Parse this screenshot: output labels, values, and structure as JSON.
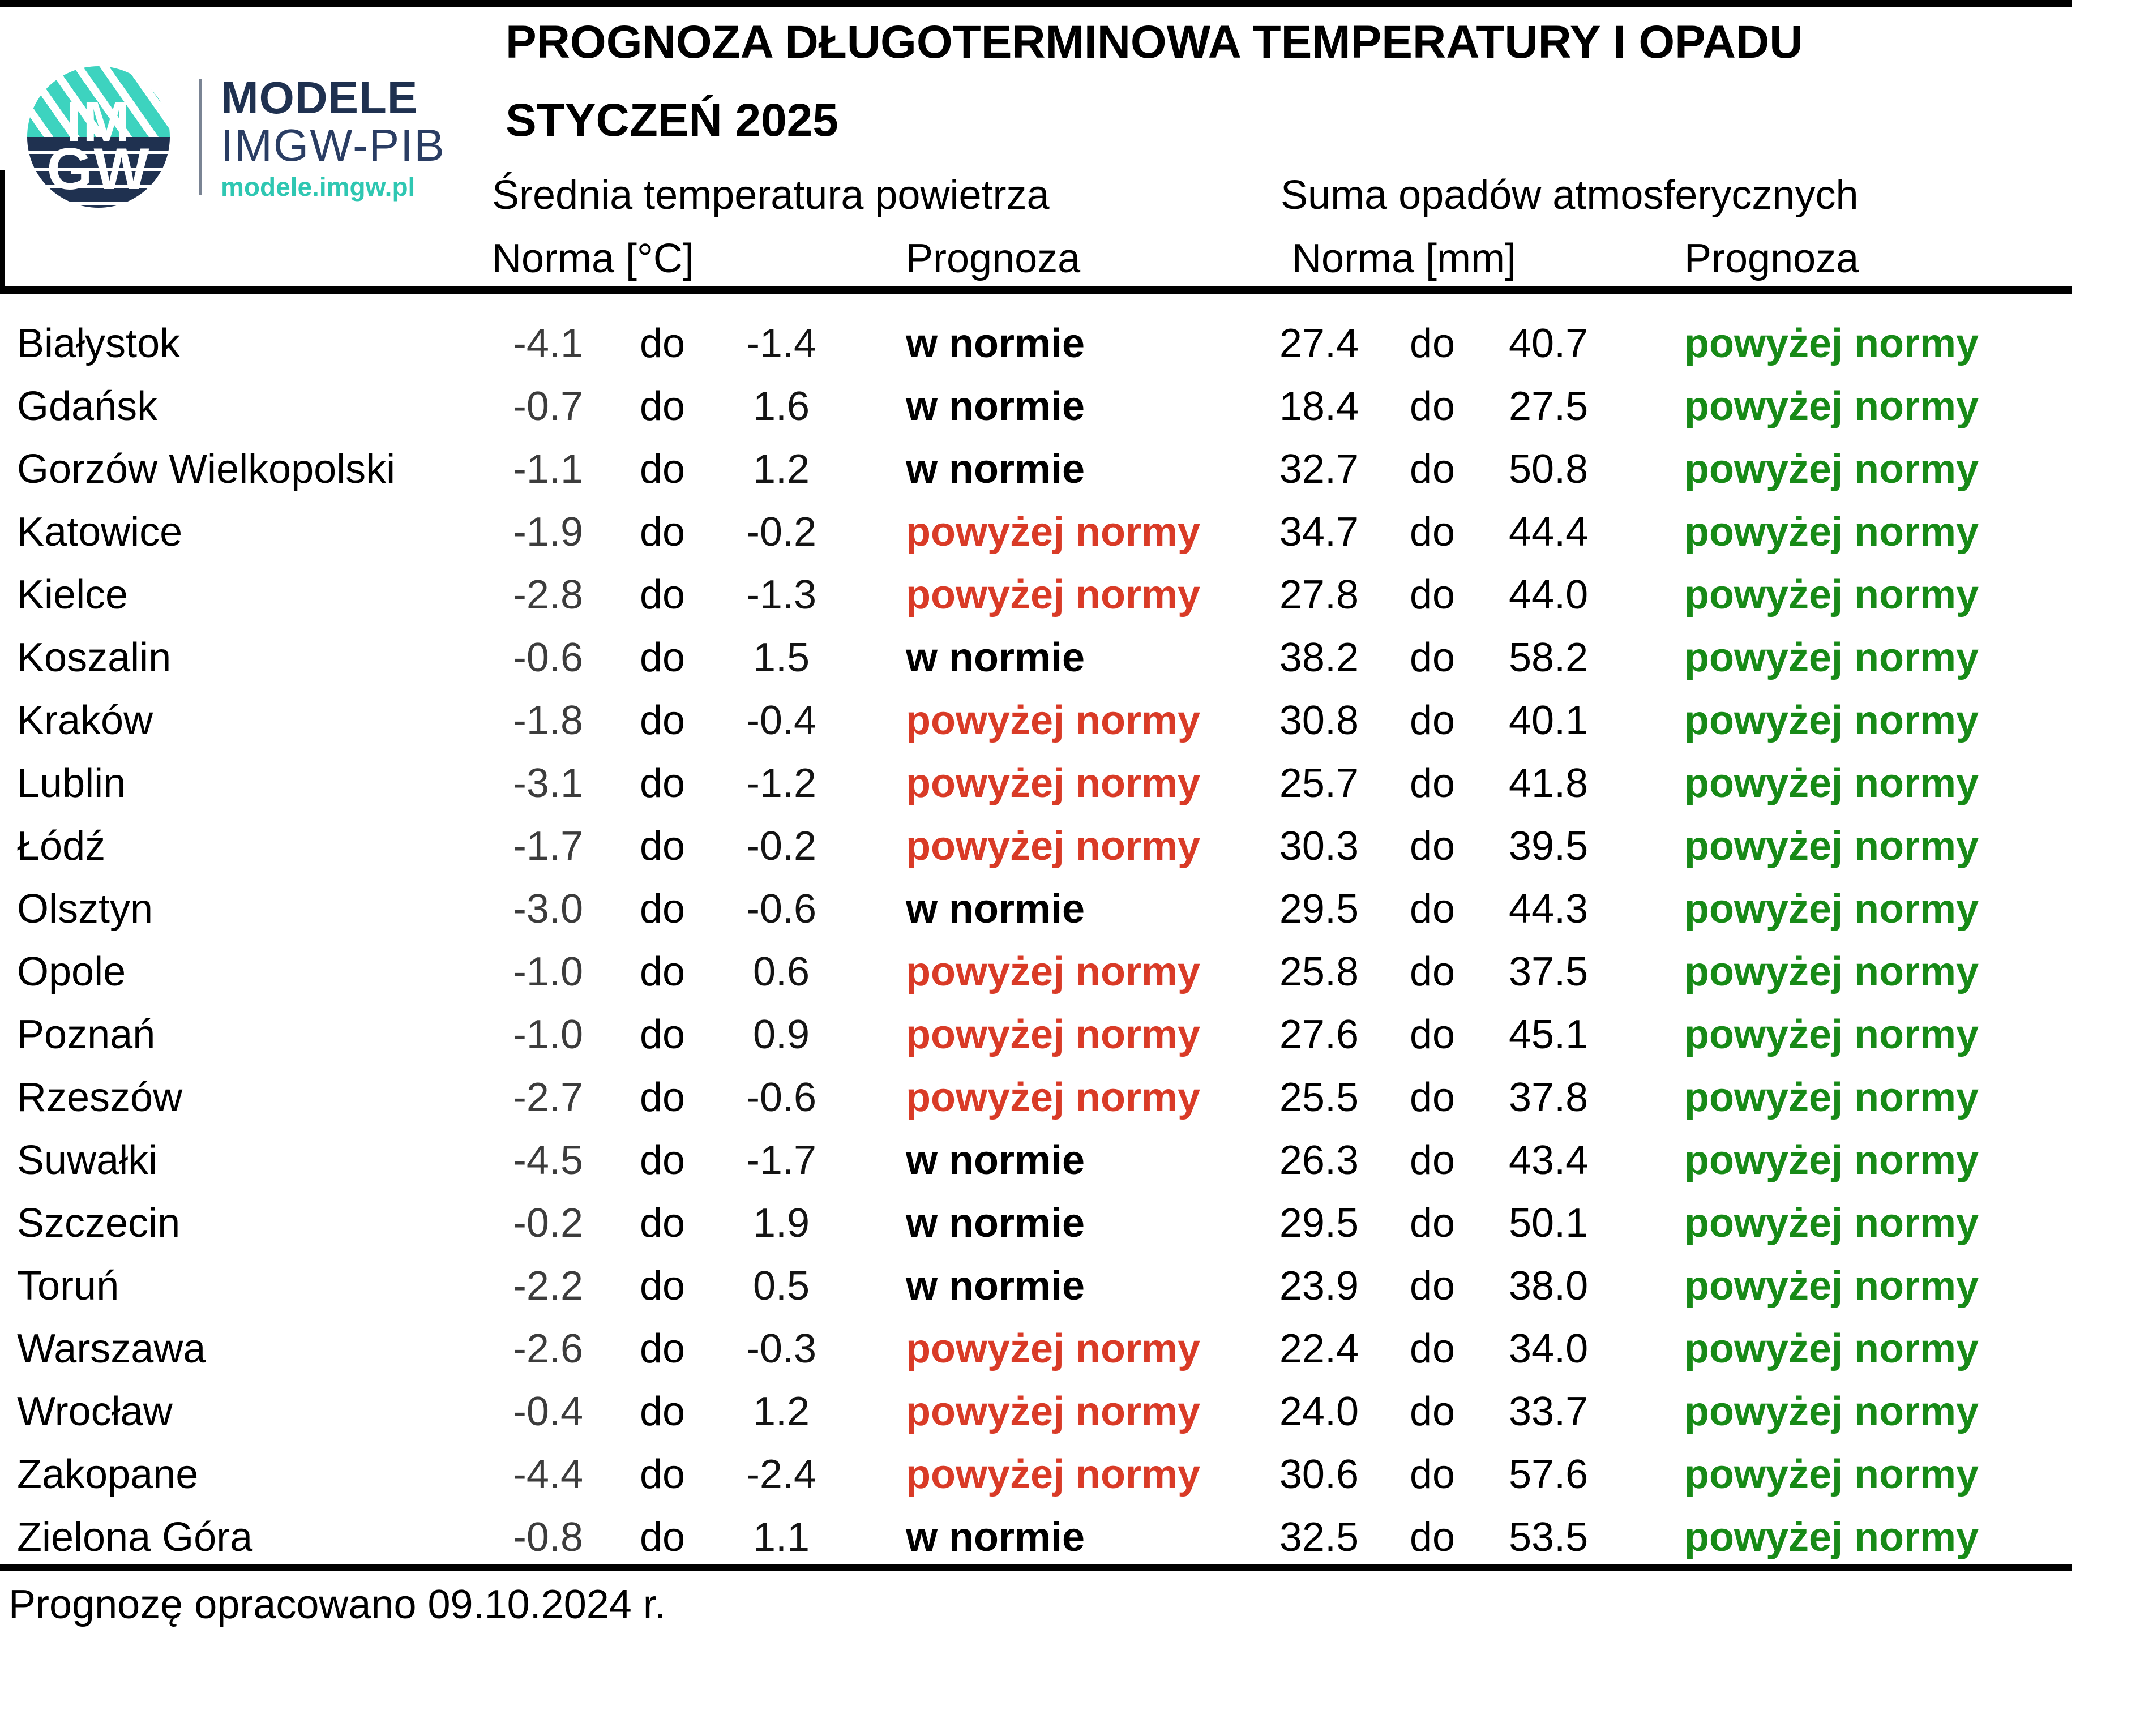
{
  "logo": {
    "im": "IM",
    "gw": "GW",
    "brand_line1": "MODELE",
    "brand_line2": "IMGW-PIB",
    "brand_url": "modele.imgw.pl"
  },
  "header": {
    "title": "PROGNOZA DŁUGOTERMINOWA TEMPERATURY I OPADU",
    "subtitle": "STYCZEŃ 2025",
    "temp_group": "Średnia temperatura powietrza",
    "precip_group": "Suma opadów atmosferycznych",
    "temp_norm_label": "Norma [°C]",
    "temp_forecast_label": "Prognoza",
    "precip_norm_label": "Norma [mm]",
    "precip_forecast_label": "Prognoza"
  },
  "labels": {
    "do": "do"
  },
  "rows": [
    {
      "city": "Białystok",
      "t_lo": "-4.1",
      "t_hi": "-1.4",
      "t_prog": "w normie",
      "t_class": "normal",
      "p_lo": "27.4",
      "p_hi": "40.7",
      "p_prog": "powyżej normy",
      "p_class": "above"
    },
    {
      "city": "Gdańsk",
      "t_lo": "-0.7",
      "t_hi": "1.6",
      "t_prog": "w normie",
      "t_class": "normal",
      "p_lo": "18.4",
      "p_hi": "27.5",
      "p_prog": "powyżej normy",
      "p_class": "above"
    },
    {
      "city": "Gorzów Wielkopolski",
      "t_lo": "-1.1",
      "t_hi": "1.2",
      "t_prog": "w normie",
      "t_class": "normal",
      "p_lo": "32.7",
      "p_hi": "50.8",
      "p_prog": "powyżej normy",
      "p_class": "above"
    },
    {
      "city": "Katowice",
      "t_lo": "-1.9",
      "t_hi": "-0.2",
      "t_prog": "powyżej normy",
      "t_class": "above",
      "p_lo": "34.7",
      "p_hi": "44.4",
      "p_prog": "powyżej normy",
      "p_class": "above"
    },
    {
      "city": "Kielce",
      "t_lo": "-2.8",
      "t_hi": "-1.3",
      "t_prog": "powyżej normy",
      "t_class": "above",
      "p_lo": "27.8",
      "p_hi": "44.0",
      "p_prog": "powyżej normy",
      "p_class": "above"
    },
    {
      "city": "Koszalin",
      "t_lo": "-0.6",
      "t_hi": "1.5",
      "t_prog": "w normie",
      "t_class": "normal",
      "p_lo": "38.2",
      "p_hi": "58.2",
      "p_prog": "powyżej normy",
      "p_class": "above"
    },
    {
      "city": "Kraków",
      "t_lo": "-1.8",
      "t_hi": "-0.4",
      "t_prog": "powyżej normy",
      "t_class": "above",
      "p_lo": "30.8",
      "p_hi": "40.1",
      "p_prog": "powyżej normy",
      "p_class": "above"
    },
    {
      "city": "Lublin",
      "t_lo": "-3.1",
      "t_hi": "-1.2",
      "t_prog": "powyżej normy",
      "t_class": "above",
      "p_lo": "25.7",
      "p_hi": "41.8",
      "p_prog": "powyżej normy",
      "p_class": "above"
    },
    {
      "city": "Łódź",
      "t_lo": "-1.7",
      "t_hi": "-0.2",
      "t_prog": "powyżej normy",
      "t_class": "above",
      "p_lo": "30.3",
      "p_hi": "39.5",
      "p_prog": "powyżej normy",
      "p_class": "above"
    },
    {
      "city": "Olsztyn",
      "t_lo": "-3.0",
      "t_hi": "-0.6",
      "t_prog": "w normie",
      "t_class": "normal",
      "p_lo": "29.5",
      "p_hi": "44.3",
      "p_prog": "powyżej normy",
      "p_class": "above"
    },
    {
      "city": "Opole",
      "t_lo": "-1.0",
      "t_hi": "0.6",
      "t_prog": "powyżej normy",
      "t_class": "above",
      "p_lo": "25.8",
      "p_hi": "37.5",
      "p_prog": "powyżej normy",
      "p_class": "above"
    },
    {
      "city": "Poznań",
      "t_lo": "-1.0",
      "t_hi": "0.9",
      "t_prog": "powyżej normy",
      "t_class": "above",
      "p_lo": "27.6",
      "p_hi": "45.1",
      "p_prog": "powyżej normy",
      "p_class": "above"
    },
    {
      "city": "Rzeszów",
      "t_lo": "-2.7",
      "t_hi": "-0.6",
      "t_prog": "powyżej normy",
      "t_class": "above",
      "p_lo": "25.5",
      "p_hi": "37.8",
      "p_prog": "powyżej normy",
      "p_class": "above"
    },
    {
      "city": "Suwałki",
      "t_lo": "-4.5",
      "t_hi": "-1.7",
      "t_prog": "w normie",
      "t_class": "normal",
      "p_lo": "26.3",
      "p_hi": "43.4",
      "p_prog": "powyżej normy",
      "p_class": "above"
    },
    {
      "city": "Szczecin",
      "t_lo": "-0.2",
      "t_hi": "1.9",
      "t_prog": "w normie",
      "t_class": "normal",
      "p_lo": "29.5",
      "p_hi": "50.1",
      "p_prog": "powyżej normy",
      "p_class": "above"
    },
    {
      "city": "Toruń",
      "t_lo": "-2.2",
      "t_hi": "0.5",
      "t_prog": "w normie",
      "t_class": "normal",
      "p_lo": "23.9",
      "p_hi": "38.0",
      "p_prog": "powyżej normy",
      "p_class": "above"
    },
    {
      "city": "Warszawa",
      "t_lo": "-2.6",
      "t_hi": "-0.3",
      "t_prog": "powyżej normy",
      "t_class": "above",
      "p_lo": "22.4",
      "p_hi": "34.0",
      "p_prog": "powyżej normy",
      "p_class": "above"
    },
    {
      "city": "Wrocław",
      "t_lo": "-0.4",
      "t_hi": "1.2",
      "t_prog": "powyżej normy",
      "t_class": "above",
      "p_lo": "24.0",
      "p_hi": "33.7",
      "p_prog": "powyżej normy",
      "p_class": "above"
    },
    {
      "city": "Zakopane",
      "t_lo": "-4.4",
      "t_hi": "-2.4",
      "t_prog": "powyżej normy",
      "t_class": "above",
      "p_lo": "30.6",
      "p_hi": "57.6",
      "p_prog": "powyżej normy",
      "p_class": "above"
    },
    {
      "city": "Zielona Góra",
      "t_lo": "-0.8",
      "t_hi": "1.1",
      "t_prog": "w normie",
      "t_class": "normal",
      "p_lo": "32.5",
      "p_hi": "53.5",
      "p_prog": "powyżej normy",
      "p_class": "above"
    }
  ],
  "footer": {
    "note": "Prognozę opracowano 09.10.2024 r."
  },
  "colors": {
    "above_temp": "#d93b27",
    "above_precip": "#178a17",
    "navy": "#1f3150",
    "teal": "#3dd3bf"
  }
}
